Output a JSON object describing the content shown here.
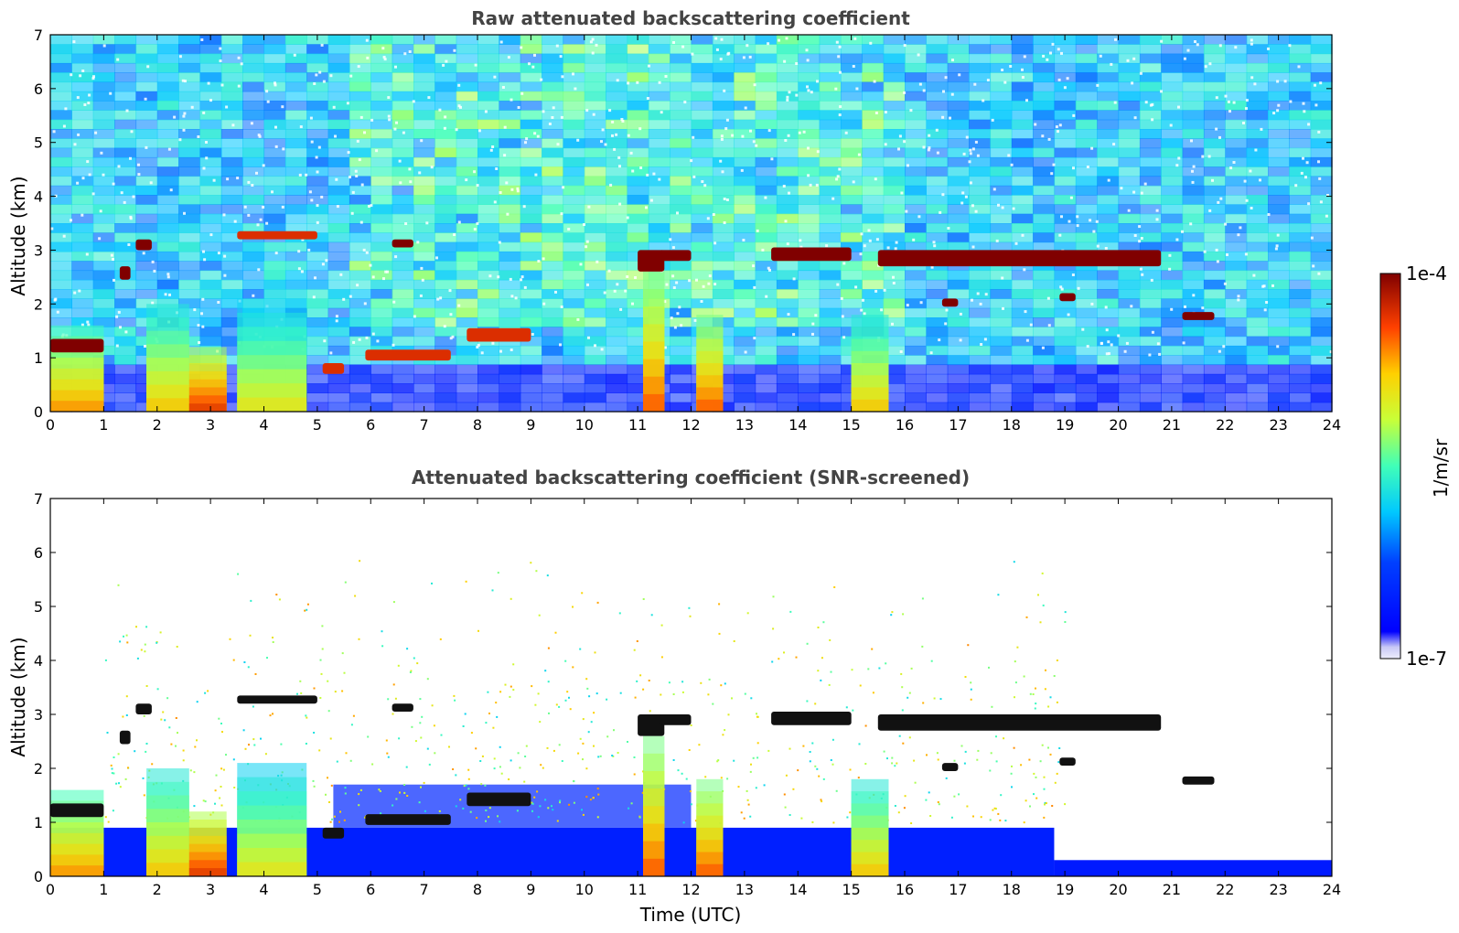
{
  "chart_data": [
    {
      "type": "heatmap",
      "title": "Raw attenuated backscattering coefficient",
      "xlabel": "",
      "ylabel": "Altitude (km)",
      "xlim": [
        0,
        24
      ],
      "ylim": [
        0,
        7
      ],
      "xticks": [
        "0",
        "1",
        "2",
        "3",
        "4",
        "5",
        "6",
        "7",
        "8",
        "9",
        "10",
        "11",
        "12",
        "13",
        "14",
        "15",
        "16",
        "17",
        "18",
        "19",
        "20",
        "21",
        "22",
        "23",
        "24"
      ],
      "yticks": [
        "0",
        "1",
        "2",
        "3",
        "4",
        "5",
        "6",
        "7"
      ],
      "screened": false,
      "cloud_layers": [
        {
          "x": [
            0.0,
            1.0
          ],
          "y": [
            1.1,
            1.35
          ],
          "level": 1.0
        },
        {
          "x": [
            1.3,
            1.5
          ],
          "y": [
            2.45,
            2.7
          ],
          "level": 1.0
        },
        {
          "x": [
            1.6,
            1.9
          ],
          "y": [
            3.0,
            3.2
          ],
          "level": 1.0
        },
        {
          "x": [
            3.5,
            5.0
          ],
          "y": [
            3.2,
            3.35
          ],
          "level": 0.9
        },
        {
          "x": [
            5.1,
            5.5
          ],
          "y": [
            0.7,
            0.9
          ],
          "level": 0.9
        },
        {
          "x": [
            5.9,
            7.5
          ],
          "y": [
            0.95,
            1.15
          ],
          "level": 0.9
        },
        {
          "x": [
            6.4,
            6.8
          ],
          "y": [
            3.05,
            3.2
          ],
          "level": 1.0
        },
        {
          "x": [
            7.8,
            9.0
          ],
          "y": [
            1.3,
            1.55
          ],
          "level": 0.9
        },
        {
          "x": [
            11.0,
            11.5
          ],
          "y": [
            2.6,
            3.0
          ],
          "level": 1.0
        },
        {
          "x": [
            11.4,
            12.0
          ],
          "y": [
            2.8,
            3.0
          ],
          "level": 1.0
        },
        {
          "x": [
            13.5,
            15.0
          ],
          "y": [
            2.8,
            3.05
          ],
          "level": 1.0
        },
        {
          "x": [
            15.5,
            20.8
          ],
          "y": [
            2.7,
            3.0
          ],
          "level": 1.0
        },
        {
          "x": [
            16.7,
            17.0
          ],
          "y": [
            1.95,
            2.1
          ],
          "level": 1.0
        },
        {
          "x": [
            18.9,
            19.2
          ],
          "y": [
            2.05,
            2.2
          ],
          "level": 1.0
        },
        {
          "x": [
            21.2,
            21.8
          ],
          "y": [
            1.7,
            1.85
          ],
          "level": 1.0
        }
      ],
      "plumes": [
        {
          "x": [
            0.0,
            1.0
          ],
          "y": [
            0.0,
            1.6
          ],
          "level": 0.85
        },
        {
          "x": [
            1.8,
            2.6
          ],
          "y": [
            0.0,
            2.0
          ],
          "level": 0.8
        },
        {
          "x": [
            2.6,
            3.3
          ],
          "y": [
            0.0,
            1.2
          ],
          "level": 0.95
        },
        {
          "x": [
            3.5,
            4.8
          ],
          "y": [
            0.0,
            2.1
          ],
          "level": 0.75
        },
        {
          "x": [
            11.1,
            11.5
          ],
          "y": [
            0.0,
            2.6
          ],
          "level": 0.9
        },
        {
          "x": [
            12.1,
            12.6
          ],
          "y": [
            0.0,
            1.8
          ],
          "level": 0.9
        },
        {
          "x": [
            15.0,
            15.7
          ],
          "y": [
            0.0,
            1.8
          ],
          "level": 0.8
        }
      ]
    },
    {
      "type": "heatmap",
      "title": "Attenuated backscattering coefficient (SNR-screened)",
      "xlabel": "Time (UTC)",
      "ylabel": "Altitude (km)",
      "xlim": [
        0,
        24
      ],
      "ylim": [
        0,
        7
      ],
      "xticks": [
        "0",
        "1",
        "2",
        "3",
        "4",
        "5",
        "6",
        "7",
        "8",
        "9",
        "10",
        "11",
        "12",
        "13",
        "14",
        "15",
        "16",
        "17",
        "18",
        "19",
        "20",
        "21",
        "22",
        "23",
        "24"
      ],
      "yticks": [
        "0",
        "1",
        "2",
        "3",
        "4",
        "5",
        "6",
        "7"
      ],
      "screened": true,
      "cloud_layers": [
        {
          "x": [
            0.0,
            1.0
          ],
          "y": [
            1.1,
            1.35
          ],
          "level": 1.0
        },
        {
          "x": [
            1.3,
            1.5
          ],
          "y": [
            2.45,
            2.7
          ],
          "level": 1.0
        },
        {
          "x": [
            1.6,
            1.9
          ],
          "y": [
            3.0,
            3.2
          ],
          "level": 1.0
        },
        {
          "x": [
            3.5,
            5.0
          ],
          "y": [
            3.2,
            3.35
          ],
          "level": 0.9
        },
        {
          "x": [
            5.1,
            5.5
          ],
          "y": [
            0.7,
            0.9
          ],
          "level": 1.0
        },
        {
          "x": [
            5.9,
            7.5
          ],
          "y": [
            0.95,
            1.15
          ],
          "level": 1.0
        },
        {
          "x": [
            6.4,
            6.8
          ],
          "y": [
            3.05,
            3.2
          ],
          "level": 1.0
        },
        {
          "x": [
            7.8,
            9.0
          ],
          "y": [
            1.3,
            1.55
          ],
          "level": 1.0
        },
        {
          "x": [
            11.0,
            11.5
          ],
          "y": [
            2.6,
            3.0
          ],
          "level": 1.0
        },
        {
          "x": [
            11.4,
            12.0
          ],
          "y": [
            2.8,
            3.0
          ],
          "level": 1.0
        },
        {
          "x": [
            13.5,
            15.0
          ],
          "y": [
            2.8,
            3.05
          ],
          "level": 1.0
        },
        {
          "x": [
            15.5,
            20.8
          ],
          "y": [
            2.7,
            3.0
          ],
          "level": 1.0
        },
        {
          "x": [
            16.7,
            17.0
          ],
          "y": [
            1.95,
            2.1
          ],
          "level": 1.0
        },
        {
          "x": [
            18.9,
            19.2
          ],
          "y": [
            2.05,
            2.2
          ],
          "level": 1.0
        },
        {
          "x": [
            21.2,
            21.8
          ],
          "y": [
            1.7,
            1.85
          ],
          "level": 1.0
        }
      ],
      "plumes": [
        {
          "x": [
            0.0,
            1.0
          ],
          "y": [
            0.0,
            1.6
          ],
          "level": 0.85
        },
        {
          "x": [
            1.8,
            2.6
          ],
          "y": [
            0.0,
            2.0
          ],
          "level": 0.8
        },
        {
          "x": [
            2.6,
            3.3
          ],
          "y": [
            0.0,
            1.2
          ],
          "level": 0.95
        },
        {
          "x": [
            3.5,
            4.8
          ],
          "y": [
            0.0,
            2.1
          ],
          "level": 0.75
        },
        {
          "x": [
            11.1,
            11.5
          ],
          "y": [
            0.0,
            2.6
          ],
          "level": 0.9
        },
        {
          "x": [
            12.1,
            12.6
          ],
          "y": [
            0.0,
            1.8
          ],
          "level": 0.9
        },
        {
          "x": [
            15.0,
            15.7
          ],
          "y": [
            0.0,
            1.8
          ],
          "level": 0.8
        }
      ]
    }
  ],
  "colorbar": {
    "label": "1/m/sr",
    "max_label": "1e-4",
    "min_label": "1e-7",
    "colormap": "jet",
    "scale": "log",
    "range": [
      "1e-7",
      "1e-4"
    ]
  }
}
